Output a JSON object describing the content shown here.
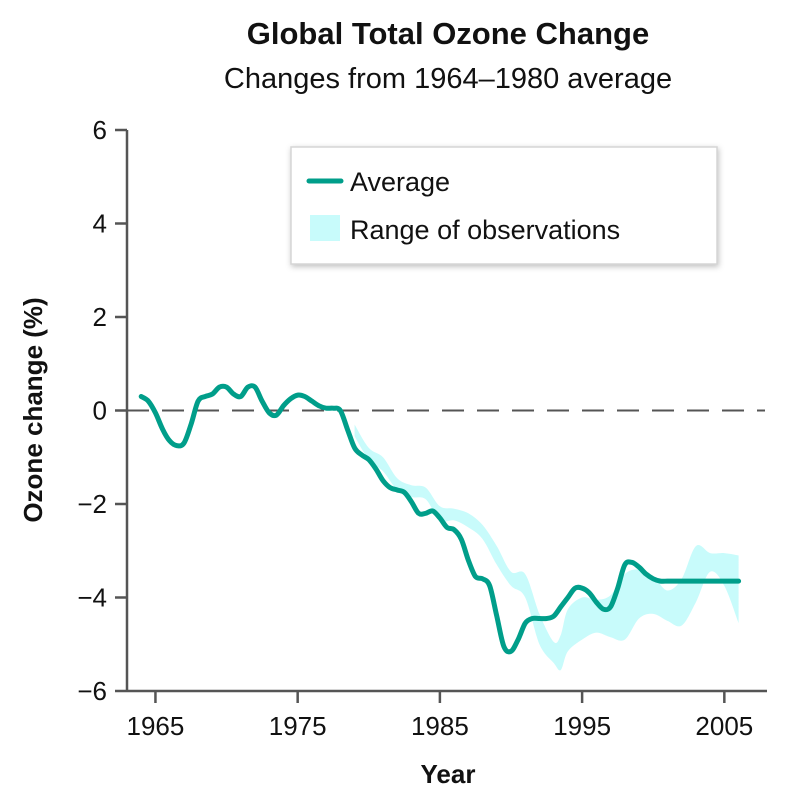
{
  "chart_data": {
    "type": "line",
    "title": "Global Total Ozone Change",
    "subtitle": "Changes from 1964–1980 average",
    "xlabel": "Year",
    "ylabel": "Ozone change (%)",
    "xlim": [
      1963,
      2008
    ],
    "ylim": [
      -6,
      6
    ],
    "x_ticks": [
      1965,
      1975,
      1985,
      1995,
      2005
    ],
    "y_ticks": [
      6,
      4,
      2,
      0,
      -2,
      -4,
      -6
    ],
    "y_tick_labels": [
      "6",
      "4",
      "2",
      "0",
      "−2",
      "−4",
      "−6"
    ],
    "reference_line": {
      "y": 0,
      "style": "dashed"
    },
    "legend": {
      "placement": "top-center",
      "entries": [
        {
          "label": "Average",
          "kind": "line"
        },
        {
          "label": "Range of observations",
          "kind": "band"
        }
      ]
    },
    "colors": {
      "average": "#009e8a",
      "range": "#c8fbfb",
      "axis": "#555555",
      "dashed": "#555555"
    },
    "series": [
      {
        "name": "Average",
        "x": [
          1964,
          1964.5,
          1965,
          1965.5,
          1966,
          1966.5,
          1967,
          1967.5,
          1968,
          1968.5,
          1969,
          1969.5,
          1970,
          1970.5,
          1971,
          1971.5,
          1972,
          1972.5,
          1973,
          1973.5,
          1974,
          1974.5,
          1975,
          1975.5,
          1976,
          1976.5,
          1977,
          1977.5,
          1978,
          1978.5,
          1979,
          1979.5,
          1980,
          1980.5,
          1981,
          1981.5,
          1982,
          1982.5,
          1983,
          1983.5,
          1984,
          1984.5,
          1985,
          1985.5,
          1986,
          1986.5,
          1987,
          1987.5,
          1988,
          1988.5,
          1989,
          1989.5,
          1990,
          1990.5,
          1991,
          1991.5,
          1992,
          1992.5,
          1993,
          1993.5,
          1994,
          1994.5,
          1995,
          1995.5,
          1996,
          1996.5,
          1997,
          1997.5,
          1998,
          1998.5,
          1999,
          1999.5,
          2000,
          2000.5,
          2001,
          2001.5,
          2002,
          2002.5,
          2003,
          2003.5,
          2004,
          2004.5,
          2005,
          2005.5,
          2006
        ],
        "y": [
          0.3,
          0.2,
          -0.05,
          -0.4,
          -0.65,
          -0.75,
          -0.7,
          -0.3,
          0.2,
          0.3,
          0.35,
          0.5,
          0.5,
          0.35,
          0.3,
          0.5,
          0.5,
          0.2,
          -0.05,
          -0.1,
          0.1,
          0.25,
          0.33,
          0.3,
          0.2,
          0.1,
          0.05,
          0.05,
          0.0,
          -0.4,
          -0.8,
          -0.95,
          -1.05,
          -1.25,
          -1.5,
          -1.65,
          -1.7,
          -1.75,
          -1.95,
          -2.2,
          -2.2,
          -2.15,
          -2.3,
          -2.5,
          -2.55,
          -2.75,
          -3.2,
          -3.55,
          -3.6,
          -3.75,
          -4.4,
          -5.05,
          -5.15,
          -4.9,
          -4.55,
          -4.45,
          -4.45,
          -4.45,
          -4.4,
          -4.2,
          -4.0,
          -3.8,
          -3.8,
          -3.9,
          -4.1,
          -4.25,
          -4.2,
          -3.8,
          -3.3,
          -3.25,
          -3.35,
          -3.5,
          -3.6,
          -3.65,
          -3.65,
          -3.65,
          -3.65,
          -3.65,
          -3.65,
          -3.65,
          -3.65,
          -3.65,
          -3.65,
          -3.65,
          -3.65
        ]
      },
      {
        "name": "Range of observations",
        "x": [
          1979,
          1980,
          1981,
          1982,
          1983,
          1984,
          1985,
          1986,
          1987,
          1988,
          1989,
          1990,
          1991,
          1992,
          1993,
          1993.5,
          1994,
          1995,
          1996,
          1997,
          1998,
          1999,
          2000,
          2001,
          2002,
          2003,
          2004,
          2005,
          2006
        ],
        "upper": [
          -0.3,
          -0.8,
          -1.0,
          -1.45,
          -1.6,
          -1.65,
          -2.05,
          -2.1,
          -2.2,
          -2.45,
          -2.9,
          -3.45,
          -3.5,
          -4.35,
          -4.95,
          -4.8,
          -4.25,
          -4.0,
          -4.05,
          -3.95,
          -3.5,
          -3.4,
          -3.55,
          -3.85,
          -3.6,
          -2.9,
          -3.05,
          -3.05,
          -3.1
        ],
        "lower": [
          -0.55,
          -1.05,
          -1.3,
          -1.7,
          -1.85,
          -1.9,
          -2.35,
          -2.35,
          -2.5,
          -2.75,
          -3.3,
          -3.75,
          -4.0,
          -5.0,
          -5.4,
          -5.55,
          -5.15,
          -4.9,
          -4.75,
          -4.85,
          -4.9,
          -4.45,
          -4.35,
          -4.5,
          -4.6,
          -4.1,
          -3.45,
          -3.75,
          -4.55
        ]
      }
    ]
  }
}
